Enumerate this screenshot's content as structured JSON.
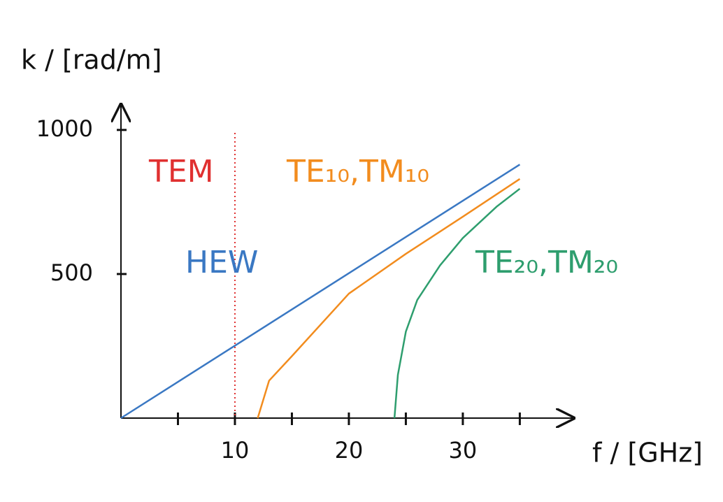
{
  "chart_data": {
    "type": "line",
    "y_label": "k / [rad/m]",
    "x_label": "f / [GHz]",
    "xlim": [
      0,
      39.7
    ],
    "ylim": [
      0,
      1087
    ],
    "xticks": [
      10,
      20,
      30
    ],
    "xminor_ticks": [
      5,
      15,
      25,
      35
    ],
    "yticks": [
      500,
      1000
    ],
    "vline": {
      "x": 10,
      "color": "#e03030"
    },
    "series": [
      {
        "name": "HEW",
        "color": "#3a78c3",
        "x": [
          0,
          35
        ],
        "values": [
          0,
          880
        ]
      },
      {
        "name": "TE₁₀,TM₁₀",
        "color": "#f28c1e",
        "x": [
          12,
          13,
          15,
          20,
          25,
          30,
          35
        ],
        "values": [
          0,
          130,
          215,
          432,
          570,
          699,
          830
        ]
      },
      {
        "name": "TE₂₀,TM₂₀",
        "color": "#2e9e6e",
        "x": [
          24,
          24.3,
          25,
          26,
          28,
          30,
          33,
          35
        ],
        "values": [
          0,
          150,
          300,
          410,
          530,
          625,
          735,
          796
        ]
      }
    ],
    "annotations": [
      {
        "text": "TEM",
        "color": "#e03030"
      }
    ]
  }
}
